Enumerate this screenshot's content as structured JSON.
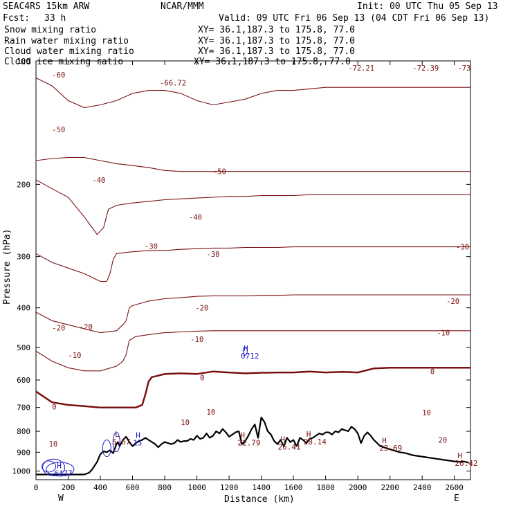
{
  "header": {
    "model": "SEAC4RS 15km ARW",
    "center": "NCAR/MMM",
    "init": "Init: 00 UTC Thu 05 Sep 13",
    "fcst_label": "Fcst:",
    "fcst_value": "33 h",
    "valid": "Valid: 09 UTC Fri 06 Sep 13 (04 CDT Fri 06 Sep 13)"
  },
  "legend": [
    {
      "name": "Snow mixing ratio",
      "color": "#000000",
      "xy": "XY=  36.1,187.3 to 175.8, 77.0"
    },
    {
      "name": "Rain water mixing ratio",
      "color": "#e00000",
      "xy": "XY=  36.1,187.3 to 175.8, 77.0"
    },
    {
      "name": "Cloud water mixing ratio",
      "color": "#0000cc",
      "xy": "XY=  36.1,187.3 to 175.8, 77.0"
    },
    {
      "name": "Cloud ice mixing ratio",
      "color": "#000000",
      "xy": "XY=  36.1,187.3 to 175.8, 77.0"
    }
  ],
  "colors": {
    "isotherm": "#7a1010",
    "terrain": "#000000",
    "cloud_water": "#1a1acc",
    "rain": "#e00000"
  },
  "chart_data": {
    "type": "line",
    "xlabel": "Distance (km)",
    "ylabel": "Pressure (hPa)",
    "xlim": [
      0,
      2700
    ],
    "ylim": [
      100,
      1050
    ],
    "y_scale": "log-pressure",
    "x_ticks": [
      0,
      200,
      400,
      600,
      800,
      1000,
      1200,
      1400,
      1600,
      1800,
      2000,
      2200,
      2400,
      2600
    ],
    "y_ticks": [
      100,
      200,
      300,
      400,
      500,
      600,
      700,
      800,
      900,
      1000
    ],
    "end_labels": {
      "left": "W",
      "right": "E"
    },
    "terrain": {
      "name": "Surface pressure",
      "x": [
        0,
        100,
        200,
        300,
        330,
        350,
        380,
        400,
        420,
        440,
        460,
        480,
        500,
        510,
        520,
        540,
        560,
        580,
        600,
        620,
        640,
        660,
        680,
        700,
        720,
        740,
        760,
        780,
        800,
        820,
        840,
        860,
        880,
        900,
        920,
        940,
        960,
        980,
        1000,
        1020,
        1040,
        1060,
        1080,
        1100,
        1120,
        1140,
        1160,
        1180,
        1200,
        1220,
        1240,
        1260,
        1280,
        1300,
        1320,
        1340,
        1360,
        1380,
        1400,
        1420,
        1440,
        1460,
        1480,
        1500,
        1520,
        1540,
        1560,
        1580,
        1600,
        1620,
        1640,
        1660,
        1680,
        1700,
        1720,
        1740,
        1760,
        1780,
        1800,
        1820,
        1840,
        1860,
        1880,
        1900,
        1920,
        1940,
        1960,
        1980,
        2000,
        2020,
        2040,
        2060,
        2080,
        2100,
        2140,
        2180,
        2220,
        2260,
        2300,
        2340,
        2380,
        2420,
        2460,
        2500,
        2540,
        2580,
        2620,
        2660,
        2690
      ],
      "p": [
        1020,
        1020,
        1020,
        1020,
        1010,
        990,
        950,
        910,
        895,
        900,
        890,
        905,
        860,
        850,
        870,
        840,
        825,
        850,
        870,
        855,
        845,
        840,
        830,
        840,
        850,
        860,
        875,
        860,
        850,
        855,
        860,
        855,
        840,
        850,
        845,
        845,
        835,
        840,
        820,
        835,
        830,
        810,
        830,
        820,
        800,
        810,
        790,
        805,
        825,
        815,
        805,
        800,
        860,
        845,
        820,
        790,
        770,
        830,
        740,
        760,
        800,
        815,
        845,
        860,
        840,
        870,
        830,
        850,
        840,
        870,
        830,
        840,
        855,
        835,
        830,
        820,
        810,
        815,
        805,
        805,
        815,
        800,
        805,
        790,
        795,
        800,
        780,
        790,
        810,
        855,
        820,
        805,
        820,
        840,
        870,
        880,
        890,
        900,
        905,
        915,
        920,
        925,
        930,
        935,
        940,
        945,
        950,
        948,
        955
      ]
    },
    "isotherms": [
      {
        "level": "0",
        "x": [
          0,
          100,
          200,
          300,
          400,
          500,
          560,
          620,
          660,
          680,
          700,
          720,
          740,
          800,
          900,
          1000,
          1100,
          1200,
          1300,
          1400,
          1500,
          1600,
          1700,
          1800,
          1900,
          2000,
          2100,
          2200,
          2300,
          2400,
          2500,
          2600,
          2700
        ],
        "p": [
          640,
          680,
          690,
          695,
          700,
          700,
          700,
          700,
          690,
          650,
          605,
          590,
          588,
          580,
          578,
          580,
          572,
          575,
          578,
          576,
          575,
          575,
          572,
          575,
          573,
          575,
          562,
          560,
          560,
          560,
          560,
          560,
          560
        ]
      },
      {
        "level": "-10",
        "x": [
          0,
          100,
          200,
          300,
          400,
          500,
          540,
          560,
          580,
          620,
          700,
          800,
          900,
          1000,
          1100,
          1200,
          1300,
          1400,
          1500,
          1600,
          1700,
          1800,
          1900,
          2000,
          2100,
          2200,
          2300,
          2400,
          2500,
          2600,
          2700
        ],
        "p": [
          510,
          540,
          560,
          570,
          570,
          555,
          540,
          520,
          480,
          470,
          465,
          460,
          458,
          456,
          455,
          455,
          455,
          455,
          455,
          455,
          455,
          455,
          455,
          455,
          455,
          455,
          455,
          455,
          455,
          455,
          455
        ]
      },
      {
        "level": "-20",
        "x": [
          0,
          100,
          200,
          300,
          400,
          500,
          540,
          560,
          580,
          600,
          700,
          800,
          900,
          1000,
          1100,
          1200,
          1300,
          1400,
          1500,
          1600,
          1700,
          1800,
          1900,
          2000,
          2100,
          2200,
          2300,
          2400,
          2500,
          2600,
          2700
        ],
        "p": [
          410,
          430,
          440,
          450,
          460,
          455,
          440,
          430,
          400,
          395,
          385,
          380,
          378,
          375,
          374,
          374,
          374,
          373,
          373,
          372,
          372,
          372,
          372,
          372,
          372,
          372,
          372,
          372,
          372,
          372,
          372
        ]
      },
      {
        "level": "-30",
        "x": [
          0,
          100,
          200,
          300,
          400,
          440,
          460,
          480,
          500,
          600,
          700,
          800,
          900,
          1000,
          1100,
          1200,
          1300,
          1400,
          1500,
          1600,
          1700,
          1800,
          1900,
          2000,
          2100,
          2200,
          2300,
          2400,
          2500,
          2600,
          2700
        ],
        "p": [
          295,
          310,
          320,
          330,
          345,
          345,
          330,
          305,
          295,
          292,
          290,
          290,
          288,
          287,
          286,
          286,
          285,
          285,
          285,
          284,
          284,
          284,
          284,
          284,
          284,
          284,
          284,
          284,
          284,
          284,
          284
        ]
      },
      {
        "level": "-40",
        "x": [
          0,
          100,
          200,
          300,
          380,
          420,
          450,
          500,
          600,
          700,
          800,
          900,
          1000,
          1100,
          1200,
          1300,
          1400,
          1500,
          1600,
          1700,
          1800,
          1900,
          2000,
          2100,
          2200,
          2300,
          2400,
          2500,
          2600,
          2700
        ],
        "p": [
          195,
          205,
          215,
          240,
          265,
          255,
          230,
          225,
          222,
          220,
          218,
          217,
          216,
          215,
          214,
          214,
          213,
          213,
          213,
          212,
          212,
          212,
          212,
          212,
          212,
          212,
          212,
          212,
          212,
          212
        ]
      },
      {
        "level": "-50",
        "x": [
          0,
          100,
          200,
          300,
          400,
          500,
          600,
          700,
          800,
          900,
          1000,
          1100,
          1200,
          1300,
          1400,
          1500,
          1600,
          1700,
          1800,
          1900,
          2000,
          2100,
          2200,
          2300,
          2400,
          2500,
          2600,
          2700
        ],
        "p": [
          175,
          173,
          172,
          172,
          175,
          178,
          180,
          182,
          185,
          186,
          186,
          186,
          186,
          186,
          186,
          186,
          186,
          186,
          186,
          186,
          186,
          186,
          186,
          186,
          186,
          186,
          186,
          186
        ]
      },
      {
        "level": "-60",
        "x": [
          0,
          100,
          200,
          300,
          400,
          500,
          600,
          700,
          800,
          900,
          1000,
          1100,
          1200,
          1300,
          1400,
          1500,
          1600,
          1700,
          1800,
          1900,
          2000,
          2100,
          2200,
          2300,
          2400,
          2500,
          2600,
          2700
        ],
        "p": [
          110,
          115,
          125,
          130,
          128,
          125,
          120,
          118,
          118,
          120,
          125,
          128,
          126,
          124,
          120,
          118,
          118,
          117,
          116,
          116,
          116,
          116,
          116,
          116,
          116,
          116,
          116,
          116
        ]
      }
    ],
    "contour_labels": [
      {
        "text": "-60",
        "x": 100,
        "p": 108
      },
      {
        "text": "-66.72",
        "x": 770,
        "p": 113
      },
      {
        "text": "-72.21",
        "x": 1940,
        "p": 104
      },
      {
        "text": "-72.39",
        "x": 2340,
        "p": 104
      },
      {
        "text": "-73",
        "x": 2620,
        "p": 104
      },
      {
        "text": "-50",
        "x": 100,
        "p": 147
      },
      {
        "text": "-50",
        "x": 1100,
        "p": 186
      },
      {
        "text": "-40",
        "x": 350,
        "p": 195
      },
      {
        "text": "-40",
        "x": 950,
        "p": 240
      },
      {
        "text": "-30",
        "x": 675,
        "p": 283
      },
      {
        "text": "-30",
        "x": 1060,
        "p": 296
      },
      {
        "text": "-30",
        "x": 2610,
        "p": 284
      },
      {
        "text": "-20",
        "x": 100,
        "p": 447
      },
      {
        "text": "-20",
        "x": 270,
        "p": 445
      },
      {
        "text": "-20",
        "x": 990,
        "p": 400
      },
      {
        "text": "-20",
        "x": 2550,
        "p": 385
      },
      {
        "text": "-10",
        "x": 200,
        "p": 522
      },
      {
        "text": "-10",
        "x": 960,
        "p": 477
      },
      {
        "text": "-10",
        "x": 2490,
        "p": 460
      },
      {
        "text": "0",
        "x": 100,
        "p": 697
      },
      {
        "text": "0",
        "x": 1020,
        "p": 592
      },
      {
        "text": "0",
        "x": 2450,
        "p": 572
      },
      {
        "text": "10",
        "x": 80,
        "p": 858
      },
      {
        "text": "10",
        "x": 900,
        "p": 760
      },
      {
        "text": "10",
        "x": 1060,
        "p": 717
      },
      {
        "text": "10",
        "x": 2400,
        "p": 720
      },
      {
        "text": "20",
        "x": 2500,
        "p": 840
      }
    ],
    "hl_markers": [
      {
        "letter": "H",
        "value": "0712",
        "x": 1290,
        "p": 510,
        "color": "#1a1acc"
      },
      {
        "letter": "H",
        "value": "6477",
        "x": 130,
        "p": 985,
        "color": "#1a1acc"
      },
      {
        "letter": "L",
        "value": "5.67",
        "x": 490,
        "p": 825,
        "color": "#7a1010"
      },
      {
        "letter": "H",
        "value": "15",
        "x": 620,
        "p": 830,
        "color": "#1a1acc"
      },
      {
        "letter": "H",
        "value": "22.79",
        "x": 1270,
        "p": 830,
        "color": "#7a1010"
      },
      {
        "letter": "H",
        "value": "26.41",
        "x": 1520,
        "p": 850,
        "color": "#7a1010"
      },
      {
        "letter": "H",
        "value": "28.14",
        "x": 1680,
        "p": 825,
        "color": "#7a1010"
      },
      {
        "letter": "H",
        "value": "23.69",
        "x": 2150,
        "p": 855,
        "color": "#7a1010"
      },
      {
        "letter": "H",
        "value": "26.42",
        "x": 2620,
        "p": 930,
        "color": "#7a1010"
      }
    ]
  }
}
